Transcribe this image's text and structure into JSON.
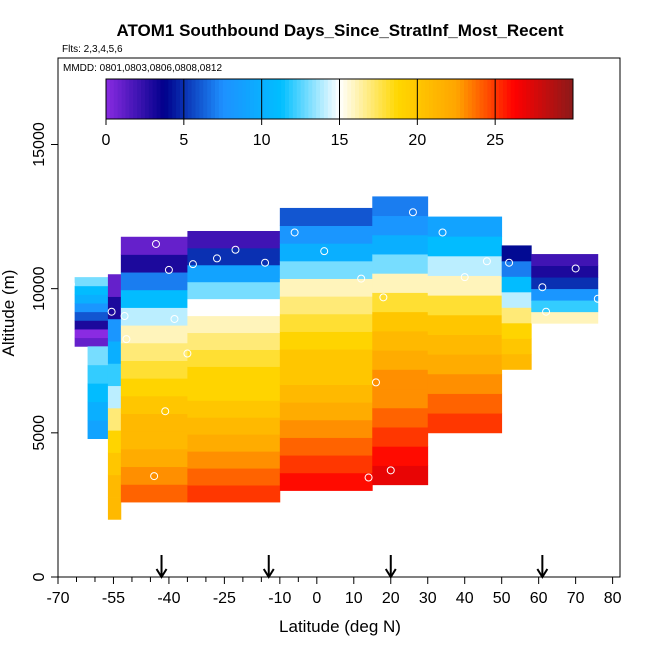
{
  "chart_data": {
    "type": "heatmap",
    "title": "ATOM1 Southbound Days_Since_StratInf_Most_Recent",
    "flights_label": "Flts: 2,3,4,5,6",
    "dates_label": "MMDD: 0801,0803,0806,0808,0812",
    "xlabel": "Latitude (deg N)",
    "ylabel": "Altitude (m)",
    "xlim": [
      -70,
      82
    ],
    "ylim": [
      0,
      18000
    ],
    "x_ticks": [
      -70,
      -55,
      -40,
      -25,
      -10,
      0,
      10,
      20,
      30,
      40,
      50,
      60,
      70,
      80
    ],
    "x_tick_labels": [
      "-70",
      "-55",
      "-40",
      "-25",
      "-10",
      "0",
      "10",
      "20",
      "30",
      "40",
      "50",
      "60",
      "70",
      "80"
    ],
    "x_minor_ticks": [
      -65,
      -60,
      -50,
      -45,
      -35,
      -30,
      -20,
      -15,
      -5
    ],
    "y_ticks": [
      0,
      5000,
      10000,
      15000
    ],
    "y_tick_labels": [
      "0",
      "5000",
      "10000",
      "15000"
    ],
    "colorbar": {
      "range": [
        0,
        30
      ],
      "ticks": [
        0,
        5,
        10,
        15,
        20,
        25
      ],
      "tick_labels": [
        "0",
        "5",
        "10",
        "15",
        "20",
        "25"
      ],
      "colors": [
        "#8a2be2",
        "#00008b",
        "#1e90ff",
        "#00bfff",
        "#ffffff",
        "#ffd700",
        "#ffa500",
        "#ff0000",
        "#8b1a1a"
      ]
    },
    "arrows_latitude": [
      -42,
      -13,
      20,
      61
    ],
    "profiles": [
      {
        "lat_min": -65.5,
        "lat_max": -56.5,
        "alt_min": 8000,
        "alt_max": 10400,
        "values": [
          [
            1,
            0,
            3,
            6,
            8,
            10,
            11,
            13
          ]
        ]
      },
      {
        "lat_min": -62,
        "lat_max": -56.5,
        "alt_min": 4800,
        "alt_max": 8000,
        "values": [
          [
            9,
            10,
            11,
            12,
            13
          ]
        ]
      },
      {
        "lat_min": -56.5,
        "lat_max": -53,
        "alt_min": 2000,
        "alt_max": 10500,
        "values": [
          [
            21,
            21,
            20,
            19,
            17,
            14,
            12,
            10,
            8,
            3,
            1
          ]
        ]
      },
      {
        "lat_min": -53,
        "lat_max": -35,
        "alt_min": 2600,
        "alt_max": 11800,
        "values": [
          [
            24,
            23,
            22,
            21,
            21,
            20,
            19,
            18,
            17,
            16,
            14,
            11,
            7,
            3,
            1
          ]
        ]
      },
      {
        "lat_min": -35,
        "lat_max": -10,
        "alt_min": 2600,
        "alt_max": 12000,
        "values": [
          [
            25,
            24,
            23,
            22,
            21,
            20,
            19,
            19,
            18,
            17,
            16,
            15,
            13,
            9,
            5,
            2
          ]
        ]
      },
      {
        "lat_min": -10,
        "lat_max": 15,
        "alt_min": 3000,
        "alt_max": 12800,
        "values": [
          [
            26,
            25,
            24,
            23,
            22,
            21,
            20,
            20,
            19,
            18,
            17,
            16,
            13,
            10,
            8,
            6
          ]
        ]
      },
      {
        "lat_min": 15,
        "lat_max": 30,
        "alt_min": 3200,
        "alt_max": 13200,
        "values": [
          [
            27,
            26,
            25,
            24,
            23,
            23,
            22,
            21,
            20,
            18,
            16,
            13,
            10,
            8,
            7
          ]
        ]
      },
      {
        "lat_min": 30,
        "lat_max": 50,
        "alt_min": 5000,
        "alt_max": 12500,
        "values": [
          [
            25,
            24,
            23,
            22,
            21,
            20,
            18,
            16,
            14,
            11,
            9
          ]
        ]
      },
      {
        "lat_min": 50,
        "lat_max": 58,
        "alt_min": 7200,
        "alt_max": 11500,
        "values": [
          [
            21,
            20,
            19,
            17,
            14,
            11,
            7,
            4
          ]
        ]
      },
      {
        "lat_min": 58,
        "lat_max": 76,
        "alt_min": 8800,
        "alt_max": 11200,
        "values": [
          [
            16,
            12,
            8,
            5,
            3,
            2
          ]
        ]
      }
    ],
    "points": [
      {
        "lat": -66.5,
        "alt": 10150
      },
      {
        "lat": -55.5,
        "alt": 9200
      },
      {
        "lat": -52,
        "alt": 9050
      },
      {
        "lat": -51.5,
        "alt": 8250
      },
      {
        "lat": -43.5,
        "alt": 11550
      },
      {
        "lat": -40,
        "alt": 10650
      },
      {
        "lat": -38.5,
        "alt": 8950
      },
      {
        "lat": -35,
        "alt": 7750
      },
      {
        "lat": -33.5,
        "alt": 10850
      },
      {
        "lat": -27,
        "alt": 11050
      },
      {
        "lat": -22,
        "alt": 11350
      },
      {
        "lat": -14,
        "alt": 10900
      },
      {
        "lat": -6,
        "alt": 11950
      },
      {
        "lat": 2,
        "alt": 11300
      },
      {
        "lat": 12,
        "alt": 10350
      },
      {
        "lat": 18,
        "alt": 9700
      },
      {
        "lat": 26,
        "alt": 12650
      },
      {
        "lat": 34,
        "alt": 11950
      },
      {
        "lat": 40,
        "alt": 10400
      },
      {
        "lat": 46,
        "alt": 10950
      },
      {
        "lat": 52,
        "alt": 10900
      },
      {
        "lat": 61,
        "alt": 10050
      },
      {
        "lat": 62,
        "alt": 9200
      },
      {
        "lat": 70,
        "alt": 10700
      },
      {
        "lat": 76,
        "alt": 9650
      },
      {
        "lat": 16,
        "alt": 6750
      },
      {
        "lat": -41,
        "alt": 5750
      },
      {
        "lat": -44,
        "alt": 3500
      },
      {
        "lat": 14,
        "alt": 3450
      },
      {
        "lat": 20,
        "alt": 3700
      }
    ]
  }
}
